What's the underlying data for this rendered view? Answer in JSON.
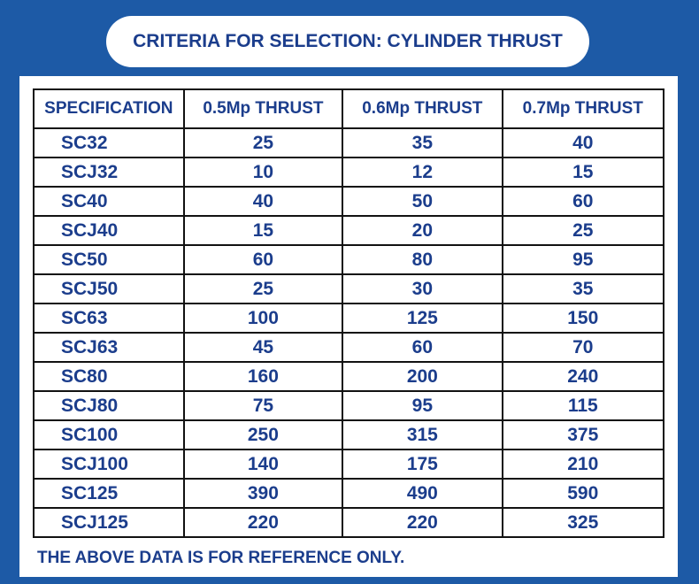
{
  "title": "CRITERIA FOR SELECTION: CYLINDER THRUST",
  "table": {
    "header": [
      "SPECIFICATION",
      "0.5Mp THRUST",
      "0.6Mp THRUST",
      "0.7Mp THRUST"
    ],
    "rows": [
      [
        "SC32",
        25,
        35,
        40
      ],
      [
        "SCJ32",
        10,
        12,
        15
      ],
      [
        "SC40",
        40,
        50,
        60
      ],
      [
        "SCJ40",
        15,
        20,
        25
      ],
      [
        "SC50",
        60,
        80,
        95
      ],
      [
        "SCJ50",
        25,
        30,
        35
      ],
      [
        "SC63",
        100,
        125,
        150
      ],
      [
        "SCJ63",
        45,
        60,
        70
      ],
      [
        "SC80",
        160,
        200,
        240
      ],
      [
        "SCJ80",
        75,
        95,
        115
      ],
      [
        "SC100",
        250,
        315,
        375
      ],
      [
        "SCJ100",
        140,
        175,
        210
      ],
      [
        "SC125",
        390,
        490,
        590
      ],
      [
        "SCJ125",
        220,
        220,
        325
      ]
    ]
  },
  "note": "THE ABOVE DATA IS FOR REFERENCE ONLY."
}
